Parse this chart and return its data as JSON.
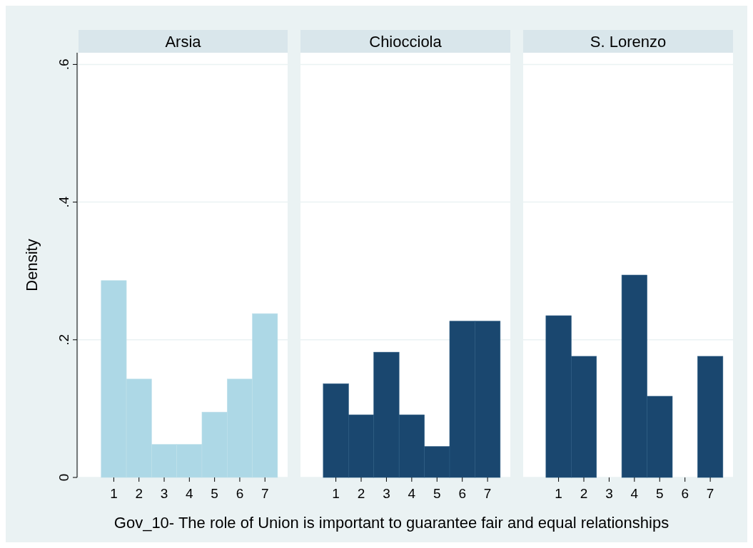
{
  "chart_data": [
    {
      "type": "histogram",
      "title": "Arsia",
      "ylabel": "Density",
      "bins": [
        0.5,
        1.5,
        2.5,
        3.5,
        4.5,
        5.5,
        6.5,
        7.5
      ],
      "values": [
        0.286,
        0.143,
        0.048,
        0.048,
        0.095,
        0.143,
        0.238
      ],
      "color": "#add8e6",
      "xlim": [
        -0.4,
        7.9
      ],
      "xticks": [
        1,
        2,
        3,
        4,
        5,
        6,
        7
      ],
      "ylim": [
        0,
        0.617
      ],
      "yticks": [
        {
          "value": 0,
          "label": "0"
        },
        {
          "value": 0.2,
          "label": ".2"
        },
        {
          "value": 0.4,
          "label": ".4"
        },
        {
          "value": 0.6,
          "label": ".6"
        }
      ],
      "grid": "y"
    },
    {
      "type": "histogram",
      "title": "Chiocciola",
      "xlabel": "Gov_10- The role of Union is important to guarantee fair and equal relationships",
      "bins": [
        0.5,
        1.5,
        2.5,
        3.5,
        4.5,
        5.5,
        6.5,
        7.5
      ],
      "values": [
        0.136,
        0.091,
        0.182,
        0.091,
        0.045,
        0.227,
        0.227
      ],
      "color": "#1a476f",
      "xlim": [
        -0.4,
        7.9
      ],
      "xticks": [
        1,
        2,
        3,
        4,
        5,
        6,
        7
      ],
      "ylim": [
        0,
        0.617
      ],
      "yticks": [
        0,
        0.2,
        0.4,
        0.6
      ],
      "grid": "y",
      "tick_labels": "x"
    },
    {
      "type": "histogram",
      "title": "S. Lorenzo",
      "bins": [
        0.5,
        1.5,
        2.5,
        3.5,
        4.5,
        5.5,
        6.5,
        7.5
      ],
      "values": [
        0.235,
        0.176,
        0,
        0.294,
        0.118,
        0,
        0.176
      ],
      "color": "#1a476f",
      "xlim": [
        -0.4,
        7.9
      ],
      "xticks": [
        1,
        2,
        3,
        4,
        5,
        6,
        7
      ],
      "ylim": [
        0,
        0.617
      ],
      "yticks": [
        0,
        0.2,
        0.4,
        0.6
      ],
      "grid": "y",
      "tick_labels": "x"
    }
  ]
}
